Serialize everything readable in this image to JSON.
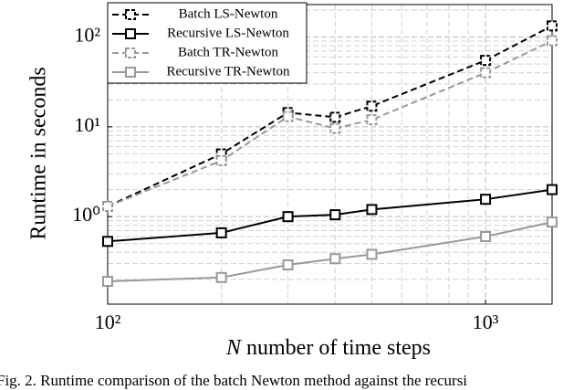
{
  "chart_data": {
    "type": "line",
    "x": [
      100,
      200,
      300,
      400,
      500,
      1000,
      1500
    ],
    "xlim": [
      100,
      1500
    ],
    "ylim": [
      0.106,
      230
    ],
    "log_x": true,
    "log_y": true,
    "grid": true,
    "minor_grid": true,
    "xticks": [
      {
        "value": 100,
        "label": "10²"
      },
      {
        "value": 1000,
        "label": "10³"
      }
    ],
    "yticks": [
      {
        "value": 1,
        "label": "10⁰"
      },
      {
        "value": 10,
        "label": "10¹"
      },
      {
        "value": 100,
        "label": "10²"
      }
    ],
    "xlabel_symbol": "N",
    "xlabel": "number of time steps",
    "ylabel": "Runtime in seconds",
    "legend": "upper left",
    "caption": "Fig. 2. Runtime comparison of the batch Newton method against the recursi",
    "series": [
      {
        "name": "Batch LS-Newton",
        "color": "#000000",
        "dashed": true,
        "values": [
          1.3,
          5.0,
          14.4,
          12.8,
          17,
          55,
          133
        ]
      },
      {
        "name": "Recursive LS-Newton",
        "color": "#000000",
        "dashed": false,
        "values": [
          0.53,
          0.66,
          1.0,
          1.05,
          1.2,
          1.56,
          2.0
        ]
      },
      {
        "name": "Batch TR-Newton",
        "color": "#999999",
        "dashed": true,
        "values": [
          1.3,
          4.2,
          13,
          9.6,
          12,
          40,
          91
        ]
      },
      {
        "name": "Recursive TR-Newton",
        "color": "#999999",
        "dashed": false,
        "values": [
          0.19,
          0.21,
          0.29,
          0.34,
          0.38,
          0.6,
          0.87
        ]
      }
    ]
  }
}
